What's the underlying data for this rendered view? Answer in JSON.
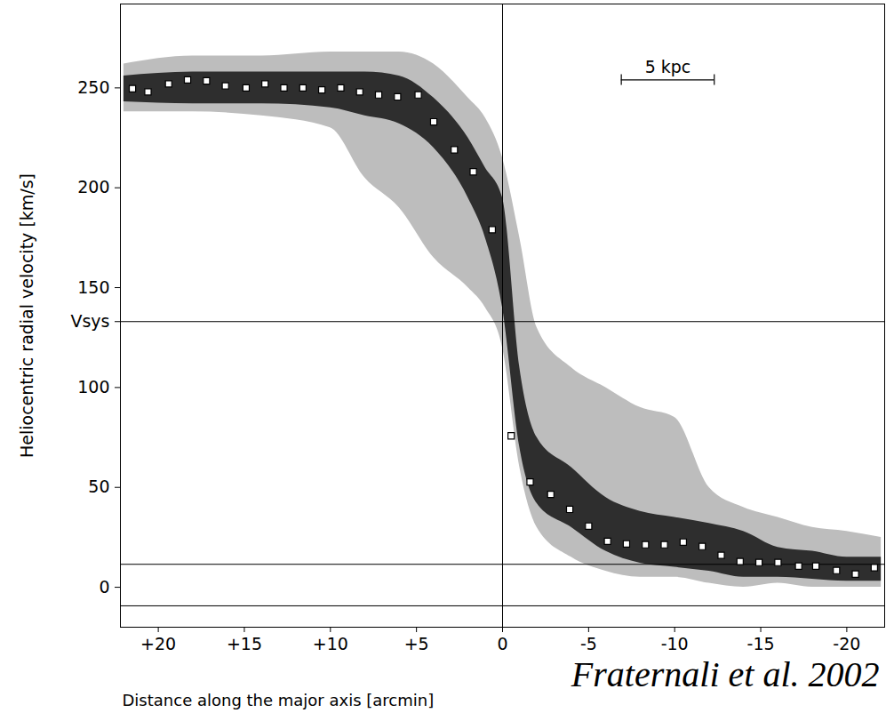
{
  "chart_data": {
    "type": "scatter",
    "xlabel": "Distance along the major axis [arcmin]",
    "ylabel": "Heliocentric radial velocity [km/s]",
    "xlim": [
      22.2,
      -22.2
    ],
    "ylim": [
      -20,
      292
    ],
    "xticks": [
      {
        "value": 20,
        "label": "+20"
      },
      {
        "value": 15,
        "label": "+15"
      },
      {
        "value": 10,
        "label": "+10"
      },
      {
        "value": 5,
        "label": "+5"
      },
      0,
      -5,
      -10,
      -15,
      -20
    ],
    "yticks": [
      0,
      50,
      100,
      {
        "value": 133,
        "label": "Vsys"
      },
      150,
      200,
      250
    ],
    "marker": "square",
    "color": "#000000",
    "x": [
      21.5,
      20.6,
      19.4,
      18.3,
      17.2,
      16.1,
      14.9,
      13.8,
      12.7,
      11.6,
      10.5,
      9.4,
      8.3,
      7.2,
      6.1,
      4.9,
      4.0,
      2.8,
      1.7,
      0.6,
      -0.5,
      -1.6,
      -2.8,
      -3.9,
      -5.0,
      -6.1,
      -7.2,
      -8.3,
      -9.4,
      -10.5,
      -11.6,
      -12.7,
      -13.8,
      -14.9,
      -16.0,
      -17.2,
      -18.2,
      -19.4,
      -20.5,
      -21.6
    ],
    "values": [
      249.6,
      248,
      252,
      254,
      253.5,
      251,
      250,
      252,
      250,
      250,
      249,
      250,
      248,
      246.5,
      245.5,
      246.5,
      233,
      219,
      208,
      179,
      75.8,
      52.7,
      46.5,
      39,
      30.6,
      23,
      21.7,
      21.3,
      21.3,
      22.6,
      20.4,
      16,
      12.9,
      12.4,
      12.4,
      10.6,
      10.6,
      8.4,
      6.6,
      9.8
    ],
    "emission": [
      {
        "color": "#bdbdbd",
        "x": [
          22,
          18,
          14,
          10,
          8,
          6,
          4,
          2,
          1,
          0,
          -1,
          -2,
          -4,
          -6,
          -8,
          -10,
          -12,
          -14,
          -16,
          -18,
          -20,
          -22
        ],
        "lower": [
          238,
          238,
          236,
          230,
          205,
          190,
          165,
          150,
          140,
          120,
          60,
          30,
          15,
          8,
          5,
          5,
          2,
          0,
          2,
          0,
          0,
          0
        ],
        "upper": [
          262,
          266,
          266,
          268,
          268,
          268,
          262,
          245,
          235,
          215,
          175,
          130,
          110,
          100,
          90,
          85,
          50,
          40,
          35,
          30,
          28,
          25
        ]
      },
      {
        "color": "#2e2e2e",
        "x": [
          22,
          18,
          14,
          10,
          8,
          6,
          4,
          2,
          1,
          0,
          -1,
          -2,
          -4,
          -6,
          -8,
          -10,
          -12,
          -14,
          -16,
          -18,
          -20,
          -22
        ],
        "lower": [
          243,
          242,
          242,
          240,
          236,
          232,
          220,
          195,
          175,
          140,
          70,
          42,
          30,
          18,
          12,
          10,
          8,
          5,
          5,
          4,
          3,
          3
        ],
        "upper": [
          256,
          258,
          258,
          258,
          258,
          256,
          245,
          225,
          210,
          195,
          110,
          75,
          60,
          45,
          38,
          35,
          32,
          28,
          20,
          18,
          15,
          15
        ]
      }
    ],
    "reference_lines": {
      "y": [
        133,
        11.5,
        -9.3
      ],
      "x": [
        0
      ]
    },
    "scale_bar": {
      "label": "5 kpc",
      "x": [
        -6.9,
        -12.3
      ],
      "y": 254
    },
    "annotations": [
      {
        "text": "Fraternali et al. 2002"
      }
    ]
  }
}
